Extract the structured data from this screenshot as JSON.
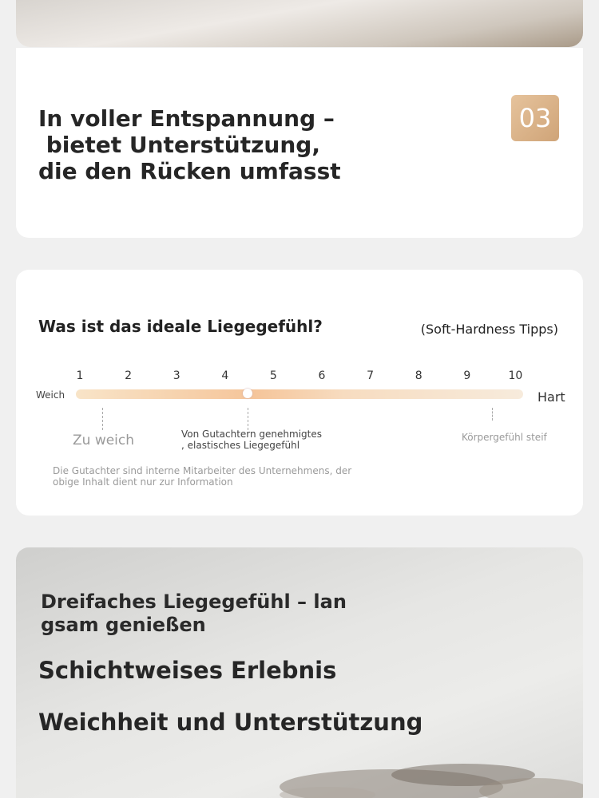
{
  "intro": {
    "heading": [
      "In voller Entspannung –",
      " bietet Unterstützung,",
      "die den Rücken umfasst"
    ],
    "badge": "03"
  },
  "feel": {
    "title": "Was ist das ideale Liegegefühl?",
    "subtitle": "(Soft-Hardness Tipps)",
    "scale": [
      1,
      2,
      3,
      4,
      5,
      6,
      7,
      8,
      9,
      10
    ],
    "left_label": "Weich",
    "right_label": "Hart",
    "too_soft": "Zu weich",
    "approved": [
      "Von Gutachtern genehmigtes",
      ", elastisches Liegegefühl"
    ],
    "stiff": "Körpergefühl steif",
    "note": [
      "Die Gutachter sind interne Mitarbeiter des Unternehmens, der",
      "obige Inhalt dient nur zur Information"
    ]
  },
  "layers": {
    "heading": [
      "Dreifaches Liegegefühl – lan",
      "gsam genießen"
    ],
    "line1": "Schichtweises Erlebnis",
    "line2": "Weichheit und Unterstützung"
  }
}
